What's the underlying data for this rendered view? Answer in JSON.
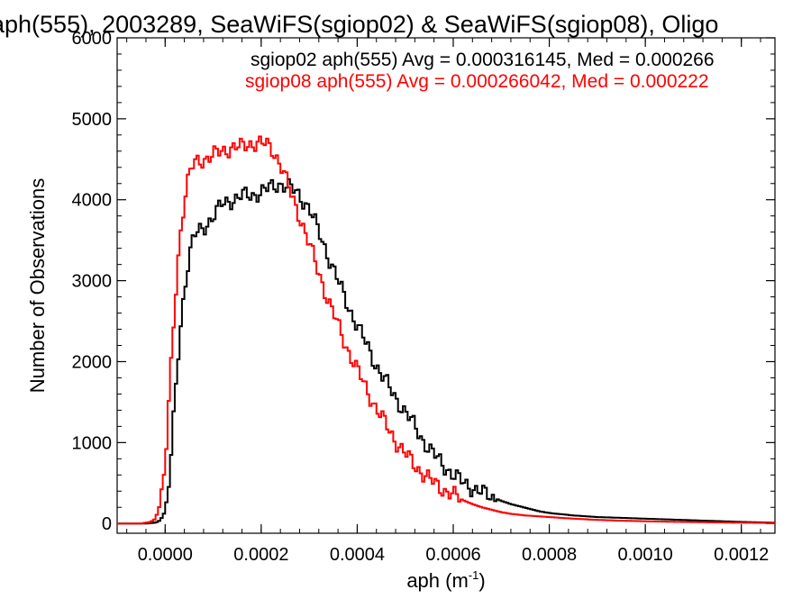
{
  "chart_data": {
    "type": "line",
    "title": "aph(555), 2003289, SeaWiFS(sgiop02) & SeaWiFS(sgiop08), Oligo",
    "xlabel": "aph (m",
    "xlabel_sup": "-1",
    "xlabel_end": ")",
    "ylabel": "Number of Observations",
    "xlim": [
      -0.0001,
      0.00127
    ],
    "ylim": [
      -120,
      6000
    ],
    "x_ticks": [
      0.0,
      0.0002,
      0.0004,
      0.0006,
      0.0008,
      0.001,
      0.0012
    ],
    "x_tick_labels": [
      "0.0000",
      "0.0002",
      "0.0004",
      "0.0006",
      "0.0008",
      "0.0010",
      "0.0012"
    ],
    "y_ticks": [
      0,
      1000,
      2000,
      3000,
      4000,
      5000,
      6000
    ],
    "y_tick_labels": [
      "0",
      "1000",
      "2000",
      "3000",
      "4000",
      "5000",
      "6000"
    ],
    "grid": false,
    "legend": [
      {
        "text": "sgiop02 aph(555) Avg = 0.000316145, Med = 0.000266",
        "color": "#000000"
      },
      {
        "text": "sgiop08 aph(555) Avg = 0.000266042, Med = 0.000222",
        "color": "#ff0000"
      }
    ],
    "series": [
      {
        "name": "sgiop02",
        "color": "#000000",
        "points": [
          [
            -0.0001,
            0
          ],
          [
            -4e-05,
            0
          ],
          [
            -2e-05,
            10
          ],
          [
            -1e-05,
            40
          ],
          [
            0.0,
            150
          ],
          [
            1e-05,
            600
          ],
          [
            2e-05,
            1500
          ],
          [
            3e-05,
            2300
          ],
          [
            4e-05,
            2900
          ],
          [
            5e-05,
            3300
          ],
          [
            6e-05,
            3550
          ],
          [
            8e-05,
            3650
          ],
          [
            0.0001,
            3800
          ],
          [
            0.00012,
            3950
          ],
          [
            0.00014,
            4000
          ],
          [
            0.00016,
            4050
          ],
          [
            0.00018,
            4050
          ],
          [
            0.0002,
            4100
          ],
          [
            0.00022,
            4150
          ],
          [
            0.00024,
            4200
          ],
          [
            0.00026,
            4150
          ],
          [
            0.00028,
            4050
          ],
          [
            0.0003,
            3900
          ],
          [
            0.00032,
            3600
          ],
          [
            0.00034,
            3300
          ],
          [
            0.00036,
            3000
          ],
          [
            0.00038,
            2700
          ],
          [
            0.0004,
            2450
          ],
          [
            0.00042,
            2200
          ],
          [
            0.00044,
            1950
          ],
          [
            0.00046,
            1750
          ],
          [
            0.00048,
            1550
          ],
          [
            0.0005,
            1380
          ],
          [
            0.00052,
            1200
          ],
          [
            0.00054,
            1000
          ],
          [
            0.00056,
            850
          ],
          [
            0.00058,
            720
          ],
          [
            0.0006,
            600
          ],
          [
            0.00062,
            510
          ],
          [
            0.00064,
            440
          ],
          [
            0.00066,
            380
          ],
          [
            0.00068,
            330
          ],
          [
            0.0007,
            280
          ],
          [
            0.00072,
            240
          ],
          [
            0.00074,
            210
          ],
          [
            0.00076,
            180
          ],
          [
            0.00078,
            150
          ],
          [
            0.0008,
            130
          ],
          [
            0.00085,
            100
          ],
          [
            0.0009,
            80
          ],
          [
            0.00095,
            70
          ],
          [
            0.001,
            60
          ],
          [
            0.00105,
            50
          ],
          [
            0.0011,
            40
          ],
          [
            0.00115,
            30
          ],
          [
            0.0012,
            20
          ],
          [
            0.00127,
            10
          ]
        ]
      },
      {
        "name": "sgiop08",
        "color": "#ff0000",
        "points": [
          [
            -0.0001,
            0
          ],
          [
            -5e-05,
            0
          ],
          [
            -3e-05,
            20
          ],
          [
            -2e-05,
            60
          ],
          [
            -1e-05,
            250
          ],
          [
            0.0,
            700
          ],
          [
            1e-05,
            1700
          ],
          [
            2e-05,
            2700
          ],
          [
            3e-05,
            3500
          ],
          [
            4e-05,
            4000
          ],
          [
            5e-05,
            4300
          ],
          [
            6e-05,
            4450
          ],
          [
            8e-05,
            4500
          ],
          [
            0.0001,
            4550
          ],
          [
            0.00012,
            4600
          ],
          [
            0.00014,
            4650
          ],
          [
            0.00016,
            4650
          ],
          [
            0.00018,
            4700
          ],
          [
            0.0002,
            4700
          ],
          [
            0.00022,
            4650
          ],
          [
            0.00024,
            4450
          ],
          [
            0.00026,
            4100
          ],
          [
            0.00028,
            3800
          ],
          [
            0.0003,
            3450
          ],
          [
            0.00032,
            3100
          ],
          [
            0.00034,
            2750
          ],
          [
            0.00036,
            2450
          ],
          [
            0.00038,
            2150
          ],
          [
            0.0004,
            1900
          ],
          [
            0.00042,
            1650
          ],
          [
            0.00044,
            1420
          ],
          [
            0.00046,
            1220
          ],
          [
            0.00048,
            1020
          ],
          [
            0.0005,
            860
          ],
          [
            0.00052,
            720
          ],
          [
            0.00054,
            600
          ],
          [
            0.00056,
            500
          ],
          [
            0.00058,
            420
          ],
          [
            0.0006,
            350
          ],
          [
            0.00062,
            290
          ],
          [
            0.00064,
            240
          ],
          [
            0.00066,
            200
          ],
          [
            0.00068,
            170
          ],
          [
            0.0007,
            140
          ],
          [
            0.00072,
            120
          ],
          [
            0.00075,
            100
          ],
          [
            0.0008,
            80
          ],
          [
            0.00085,
            60
          ],
          [
            0.0009,
            45
          ],
          [
            0.00095,
            35
          ],
          [
            0.001,
            28
          ],
          [
            0.00105,
            22
          ],
          [
            0.0011,
            18
          ],
          [
            0.00115,
            14
          ],
          [
            0.0012,
            10
          ],
          [
            0.00127,
            6
          ]
        ]
      }
    ]
  }
}
